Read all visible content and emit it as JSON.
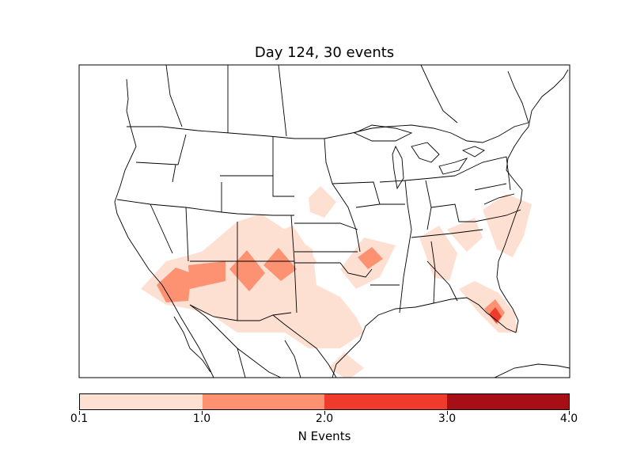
{
  "map": {
    "title": "Day 124, 30 events",
    "colorbar": {
      "label": "N Events",
      "ticks": [
        "0.1",
        "1.0",
        "2.0",
        "3.0",
        "4.0"
      ],
      "colors": [
        "#fee0d2",
        "#fc9272",
        "#ef3b2c",
        "#cb181d",
        "#a50f15"
      ]
    }
  }
}
